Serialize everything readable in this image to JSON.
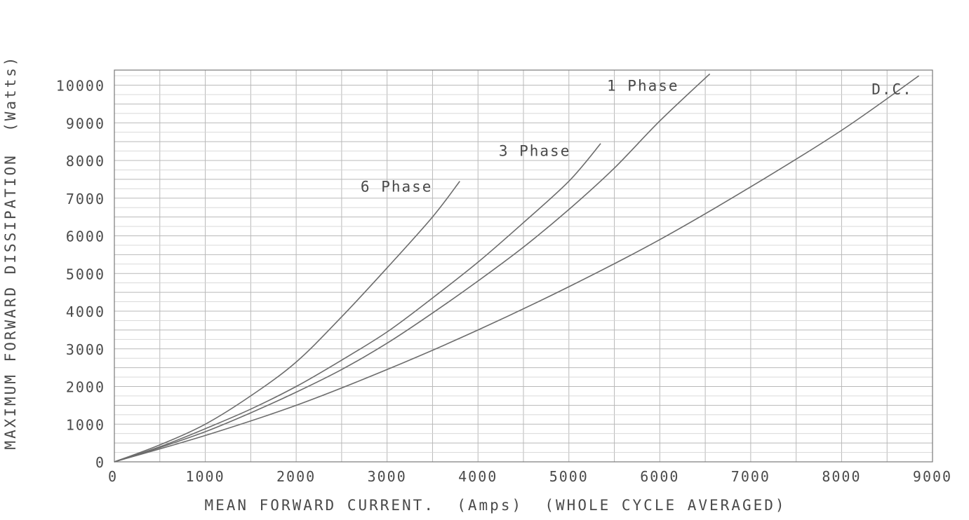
{
  "chart_data": {
    "type": "line",
    "title": "",
    "xlabel": "MEAN FORWARD CURRENT.  (Amps)  (WHOLE CYCLE AVERAGED)",
    "ylabel": "MAXIMUM FORWARD DISSIPATION  (Watts)",
    "xlim": [
      0,
      9000
    ],
    "ylim": [
      0,
      10000
    ],
    "x_ticks": [
      "0",
      "1000",
      "2000",
      "3000",
      "4000",
      "5000",
      "6000",
      "7000",
      "8000",
      "9000"
    ],
    "y_ticks": [
      "0",
      "1000",
      "2000",
      "3000",
      "4000",
      "5000",
      "6000",
      "7000",
      "8000",
      "9000",
      "10000"
    ],
    "grid": true,
    "legend": "inline labels at line ends",
    "series": [
      {
        "name": "6 Phase",
        "x": [
          0,
          500,
          1000,
          1500,
          2000,
          2500,
          3000,
          3500,
          3800
        ],
        "y": [
          0,
          450,
          1000,
          1750,
          2650,
          3850,
          5150,
          6500,
          7450
        ]
      },
      {
        "name": "3 Phase",
        "x": [
          0,
          500,
          1000,
          1500,
          2000,
          2500,
          3000,
          3500,
          4000,
          4500,
          5000,
          5350
        ],
        "y": [
          0,
          400,
          880,
          1400,
          2000,
          2700,
          3450,
          4350,
          5300,
          6350,
          7450,
          8450
        ]
      },
      {
        "name": "1 Phase",
        "x": [
          0,
          500,
          1000,
          1500,
          2000,
          2500,
          3000,
          3500,
          4000,
          4500,
          5000,
          5500,
          6000,
          6550
        ],
        "y": [
          0,
          380,
          800,
          1300,
          1850,
          2450,
          3150,
          3950,
          4800,
          5700,
          6700,
          7800,
          9050,
          10300
        ]
      },
      {
        "name": "D.C.",
        "x": [
          0,
          1000,
          2000,
          3000,
          4000,
          5000,
          6000,
          7000,
          8000,
          8850
        ],
        "y": [
          0,
          700,
          1500,
          2450,
          3500,
          4650,
          5900,
          7300,
          8800,
          10250
        ]
      }
    ]
  }
}
